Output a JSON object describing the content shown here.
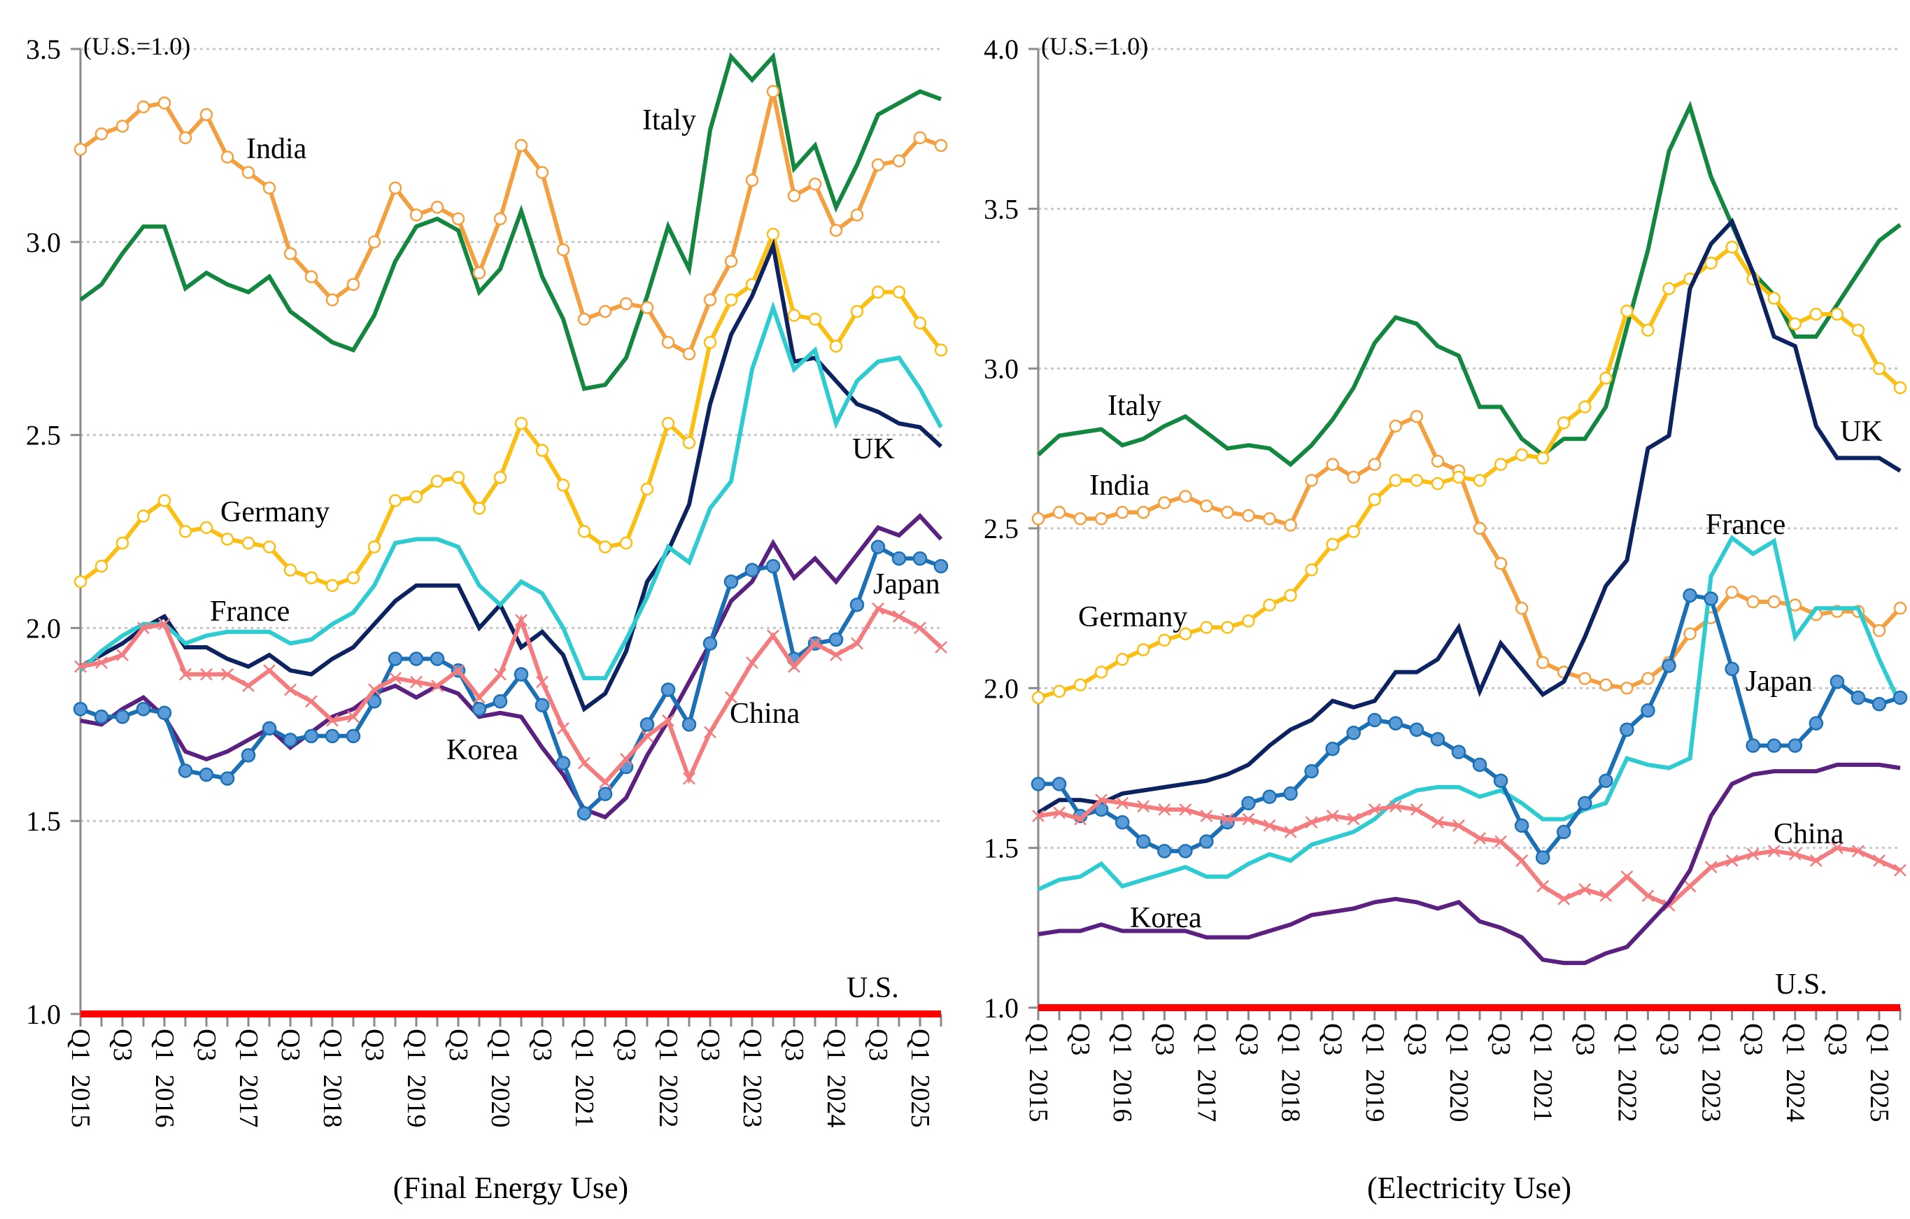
{
  "chart_data": [
    {
      "type": "line",
      "title": "(Final Energy Use)",
      "unit_note": "(U.S.=1.0)",
      "xlabel": "",
      "ylabel": "",
      "ylim": [
        1.0,
        3.5
      ],
      "yticks": [
        "1.0",
        "1.5",
        "2.0",
        "2.5",
        "3.0",
        "3.5"
      ],
      "grid": true,
      "x_tick_labels": [
        "Q1 2015",
        "Q3",
        "Q1 2016",
        "Q3",
        "Q1 2017",
        "Q3",
        "Q1 2018",
        "Q3",
        "Q1 2019",
        "Q3",
        "Q1 2020",
        "Q3",
        "Q1 2021",
        "Q3",
        "Q1 2022",
        "Q3",
        "Q1 2023",
        "Q3",
        "Q1 2024",
        "Q3",
        "Q1 2025"
      ],
      "x": [
        "2015Q1",
        "2015Q2",
        "2015Q3",
        "2015Q4",
        "2016Q1",
        "2016Q2",
        "2016Q3",
        "2016Q4",
        "2017Q1",
        "2017Q2",
        "2017Q3",
        "2017Q4",
        "2018Q1",
        "2018Q2",
        "2018Q3",
        "2018Q4",
        "2019Q1",
        "2019Q2",
        "2019Q3",
        "2019Q4",
        "2020Q1",
        "2020Q2",
        "2020Q3",
        "2020Q4",
        "2021Q1",
        "2021Q2",
        "2021Q3",
        "2021Q4",
        "2022Q1",
        "2022Q2",
        "2022Q3",
        "2022Q4",
        "2023Q1",
        "2023Q2",
        "2023Q3",
        "2023Q4",
        "2024Q1",
        "2024Q2",
        "2024Q3",
        "2024Q4",
        "2025Q1",
        "2025Q2"
      ],
      "series": [
        {
          "name": "Italy",
          "label": "Italy",
          "color": "#13873f",
          "marker": "none",
          "values": [
            2.85,
            2.89,
            2.97,
            3.04,
            3.04,
            2.88,
            2.92,
            2.89,
            2.87,
            2.91,
            2.82,
            2.78,
            2.74,
            2.72,
            2.81,
            2.95,
            3.04,
            3.06,
            3.03,
            2.87,
            2.93,
            3.08,
            2.91,
            2.8,
            2.62,
            2.63,
            2.7,
            2.86,
            3.04,
            2.93,
            3.29,
            3.48,
            3.42,
            3.48,
            3.19,
            3.25,
            3.09,
            3.2,
            3.33,
            3.36,
            3.39,
            3.37
          ]
        },
        {
          "name": "India",
          "label": "India",
          "color": "#f5a040",
          "marker": "open-circle",
          "values": [
            3.24,
            3.28,
            3.3,
            3.35,
            3.36,
            3.27,
            3.33,
            3.22,
            3.18,
            3.14,
            2.97,
            2.91,
            2.85,
            2.89,
            3.0,
            3.14,
            3.07,
            3.09,
            3.06,
            2.92,
            3.06,
            3.25,
            3.18,
            2.98,
            2.8,
            2.82,
            2.84,
            2.83,
            2.74,
            2.71,
            2.85,
            2.95,
            3.16,
            3.39,
            3.12,
            3.15,
            3.03,
            3.07,
            3.2,
            3.21,
            3.27,
            3.25
          ]
        },
        {
          "name": "Germany",
          "label": "Germany",
          "color": "#fbbf13",
          "marker": "open-circle",
          "values": [
            2.12,
            2.16,
            2.22,
            2.29,
            2.33,
            2.25,
            2.26,
            2.23,
            2.22,
            2.21,
            2.15,
            2.13,
            2.11,
            2.13,
            2.21,
            2.33,
            2.34,
            2.38,
            2.39,
            2.31,
            2.39,
            2.53,
            2.46,
            2.37,
            2.25,
            2.21,
            2.22,
            2.36,
            2.53,
            2.48,
            2.74,
            2.85,
            2.89,
            3.02,
            2.81,
            2.8,
            2.73,
            2.82,
            2.87,
            2.87,
            2.79,
            2.72
          ]
        },
        {
          "name": "UK",
          "label": "UK",
          "color": "#0d2260",
          "marker": "none",
          "values": [
            1.9,
            1.93,
            1.96,
            2.0,
            2.03,
            1.95,
            1.95,
            1.92,
            1.9,
            1.93,
            1.89,
            1.88,
            1.92,
            1.95,
            2.01,
            2.07,
            2.11,
            2.11,
            2.11,
            2.0,
            2.06,
            1.95,
            1.99,
            1.93,
            1.79,
            1.83,
            1.94,
            2.12,
            2.2,
            2.32,
            2.58,
            2.76,
            2.86,
            2.99,
            2.69,
            2.7,
            2.64,
            2.58,
            2.56,
            2.53,
            2.52,
            2.47
          ]
        },
        {
          "name": "France",
          "label": "France",
          "color": "#2ecbd1",
          "marker": "none",
          "values": [
            1.89,
            1.94,
            1.98,
            2.01,
            2.01,
            1.96,
            1.98,
            1.99,
            1.99,
            1.99,
            1.96,
            1.97,
            2.01,
            2.04,
            2.11,
            2.22,
            2.23,
            2.23,
            2.21,
            2.11,
            2.06,
            2.12,
            2.09,
            2.0,
            1.87,
            1.87,
            1.97,
            2.08,
            2.21,
            2.17,
            2.31,
            2.38,
            2.67,
            2.83,
            2.67,
            2.72,
            2.53,
            2.64,
            2.69,
            2.7,
            2.62,
            2.52
          ]
        },
        {
          "name": "Korea",
          "label": "Korea",
          "color": "#5b2180",
          "marker": "none",
          "values": [
            1.76,
            1.75,
            1.79,
            1.82,
            1.77,
            1.68,
            1.66,
            1.68,
            1.71,
            1.74,
            1.69,
            1.73,
            1.77,
            1.79,
            1.83,
            1.85,
            1.82,
            1.85,
            1.83,
            1.77,
            1.78,
            1.77,
            1.69,
            1.62,
            1.53,
            1.51,
            1.56,
            1.67,
            1.76,
            1.86,
            1.96,
            2.07,
            2.12,
            2.22,
            2.13,
            2.18,
            2.12,
            2.19,
            2.26,
            2.24,
            2.29,
            2.23
          ]
        },
        {
          "name": "Japan",
          "label": "Japan",
          "color": "#1b70b5",
          "marker": "filled-circle",
          "values": [
            1.79,
            1.77,
            1.77,
            1.79,
            1.78,
            1.63,
            1.62,
            1.61,
            1.67,
            1.74,
            1.71,
            1.72,
            1.72,
            1.72,
            1.81,
            1.92,
            1.92,
            1.92,
            1.89,
            1.79,
            1.81,
            1.88,
            1.8,
            1.65,
            1.52,
            1.57,
            1.64,
            1.75,
            1.84,
            1.75,
            1.96,
            2.12,
            2.15,
            2.16,
            1.92,
            1.96,
            1.97,
            2.06,
            2.21,
            2.18,
            2.18,
            2.16
          ]
        },
        {
          "name": "China",
          "label": "China",
          "color": "#f47c7e",
          "marker": "x",
          "values": [
            1.9,
            1.91,
            1.93,
            2.0,
            2.01,
            1.88,
            1.88,
            1.88,
            1.85,
            1.89,
            1.84,
            1.81,
            1.76,
            1.77,
            1.84,
            1.87,
            1.86,
            1.85,
            1.89,
            1.82,
            1.88,
            2.02,
            1.86,
            1.74,
            1.65,
            1.6,
            1.66,
            1.72,
            1.76,
            1.61,
            1.73,
            1.82,
            1.91,
            1.98,
            1.9,
            1.96,
            1.93,
            1.96,
            2.05,
            2.03,
            2.0,
            1.95
          ]
        },
        {
          "name": "U.S.",
          "label": "U.S.",
          "color": "#ff0000",
          "marker": "none",
          "values": [
            1.0,
            1.0,
            1.0,
            1.0,
            1.0,
            1.0,
            1.0,
            1.0,
            1.0,
            1.0,
            1.0,
            1.0,
            1.0,
            1.0,
            1.0,
            1.0,
            1.0,
            1.0,
            1.0,
            1.0,
            1.0,
            1.0,
            1.0,
            1.0,
            1.0,
            1.0,
            1.0,
            1.0,
            1.0,
            1.0,
            1.0,
            1.0,
            1.0,
            1.0,
            1.0,
            1.0,
            1.0,
            1.0,
            1.0,
            1.0,
            1.0,
            1.0
          ]
        }
      ]
    },
    {
      "type": "line",
      "title": "(Electricity Use)",
      "unit_note": "(U.S.=1.0)",
      "xlabel": "",
      "ylabel": "",
      "ylim": [
        1.0,
        4.0
      ],
      "yticks": [
        "1.0",
        "1.5",
        "2.0",
        "2.5",
        "3.0",
        "3.5",
        "4.0"
      ],
      "grid": true,
      "x_tick_labels": [
        "Q1 2015",
        "Q3",
        "Q1 2016",
        "Q3",
        "Q1 2017",
        "Q3",
        "Q1 2018",
        "Q3",
        "Q1 2019",
        "Q3",
        "Q1 2020",
        "Q3",
        "Q1 2021",
        "Q3",
        "Q1 2022",
        "Q3",
        "Q1 2023",
        "Q3",
        "Q1 2024",
        "Q3",
        "Q1 2025"
      ],
      "x": [
        "2015Q1",
        "2015Q2",
        "2015Q3",
        "2015Q4",
        "2016Q1",
        "2016Q2",
        "2016Q3",
        "2016Q4",
        "2017Q1",
        "2017Q2",
        "2017Q3",
        "2017Q4",
        "2018Q1",
        "2018Q2",
        "2018Q3",
        "2018Q4",
        "2019Q1",
        "2019Q2",
        "2019Q3",
        "2019Q4",
        "2020Q1",
        "2020Q2",
        "2020Q3",
        "2020Q4",
        "2021Q1",
        "2021Q2",
        "2021Q3",
        "2021Q4",
        "2022Q1",
        "2022Q2",
        "2022Q3",
        "2022Q4",
        "2023Q1",
        "2023Q2",
        "2023Q3",
        "2023Q4",
        "2024Q1",
        "2024Q2",
        "2024Q3",
        "2024Q4",
        "2025Q1",
        "2025Q2"
      ],
      "series": [
        {
          "name": "Italy",
          "label": "Italy",
          "color": "#13873f",
          "marker": "none",
          "values": [
            2.73,
            2.79,
            2.8,
            2.81,
            2.76,
            2.78,
            2.82,
            2.85,
            2.8,
            2.75,
            2.76,
            2.75,
            2.7,
            2.76,
            2.84,
            2.94,
            3.08,
            3.16,
            3.14,
            3.07,
            3.04,
            2.88,
            2.88,
            2.78,
            2.73,
            2.78,
            2.78,
            2.88,
            3.13,
            3.37,
            3.68,
            3.82,
            3.6,
            3.45,
            3.3,
            3.23,
            3.1,
            3.1,
            3.2,
            3.3,
            3.4,
            3.45
          ]
        },
        {
          "name": "India",
          "label": "India",
          "color": "#f5a040",
          "marker": "open-circle",
          "values": [
            2.53,
            2.55,
            2.53,
            2.53,
            2.55,
            2.55,
            2.58,
            2.6,
            2.57,
            2.55,
            2.54,
            2.53,
            2.51,
            2.65,
            2.7,
            2.66,
            2.7,
            2.82,
            2.85,
            2.71,
            2.68,
            2.5,
            2.39,
            2.25,
            2.08,
            2.05,
            2.03,
            2.01,
            2.0,
            2.03,
            2.08,
            2.17,
            2.22,
            2.3,
            2.27,
            2.27,
            2.26,
            2.23,
            2.24,
            2.24,
            2.18,
            2.25
          ]
        },
        {
          "name": "Germany",
          "label": "Germany",
          "color": "#fbbf13",
          "marker": "open-circle",
          "values": [
            1.97,
            1.99,
            2.01,
            2.05,
            2.09,
            2.12,
            2.15,
            2.17,
            2.19,
            2.19,
            2.21,
            2.26,
            2.29,
            2.37,
            2.45,
            2.49,
            2.59,
            2.65,
            2.65,
            2.64,
            2.66,
            2.65,
            2.7,
            2.73,
            2.72,
            2.83,
            2.88,
            2.97,
            3.18,
            3.12,
            3.25,
            3.28,
            3.33,
            3.38,
            3.28,
            3.22,
            3.14,
            3.17,
            3.17,
            3.12,
            3.0,
            2.94
          ]
        },
        {
          "name": "UK",
          "label": "UK",
          "color": "#0d2260",
          "marker": "none",
          "values": [
            1.61,
            1.65,
            1.65,
            1.64,
            1.67,
            1.68,
            1.69,
            1.7,
            1.71,
            1.73,
            1.76,
            1.82,
            1.87,
            1.9,
            1.96,
            1.94,
            1.96,
            2.05,
            2.05,
            2.09,
            2.19,
            1.99,
            2.14,
            2.06,
            1.98,
            2.02,
            2.16,
            2.32,
            2.4,
            2.75,
            2.79,
            3.25,
            3.39,
            3.46,
            3.3,
            3.1,
            3.07,
            2.82,
            2.72,
            2.72,
            2.72,
            2.68
          ]
        },
        {
          "name": "France",
          "label": "France",
          "color": "#2ecbd1",
          "marker": "none",
          "values": [
            1.37,
            1.4,
            1.41,
            1.45,
            1.38,
            1.4,
            1.42,
            1.44,
            1.41,
            1.41,
            1.45,
            1.48,
            1.46,
            1.51,
            1.53,
            1.55,
            1.59,
            1.65,
            1.68,
            1.69,
            1.69,
            1.66,
            1.68,
            1.64,
            1.59,
            1.59,
            1.62,
            1.64,
            1.78,
            1.76,
            1.75,
            1.78,
            2.35,
            2.47,
            2.42,
            2.46,
            2.16,
            2.25,
            2.25,
            2.25,
            2.09,
            1.95
          ]
        },
        {
          "name": "Japan",
          "label": "Japan",
          "color": "#1b70b5",
          "marker": "filled-circle",
          "values": [
            1.7,
            1.7,
            1.6,
            1.62,
            1.58,
            1.52,
            1.49,
            1.49,
            1.52,
            1.58,
            1.64,
            1.66,
            1.67,
            1.74,
            1.81,
            1.86,
            1.9,
            1.89,
            1.87,
            1.84,
            1.8,
            1.76,
            1.71,
            1.57,
            1.47,
            1.55,
            1.64,
            1.71,
            1.87,
            1.93,
            2.07,
            2.29,
            2.28,
            2.06,
            1.82,
            1.82,
            1.82,
            1.89,
            2.02,
            1.97,
            1.95,
            1.97
          ]
        },
        {
          "name": "China",
          "label": "China",
          "color": "#f47c7e",
          "marker": "x",
          "values": [
            1.6,
            1.61,
            1.59,
            1.65,
            1.64,
            1.63,
            1.62,
            1.62,
            1.6,
            1.59,
            1.59,
            1.57,
            1.55,
            1.58,
            1.6,
            1.59,
            1.62,
            1.63,
            1.62,
            1.58,
            1.57,
            1.53,
            1.52,
            1.46,
            1.38,
            1.34,
            1.37,
            1.35,
            1.41,
            1.35,
            1.32,
            1.38,
            1.44,
            1.46,
            1.48,
            1.49,
            1.48,
            1.46,
            1.5,
            1.49,
            1.46,
            1.43
          ]
        },
        {
          "name": "Korea",
          "label": "Korea",
          "color": "#5b2180",
          "marker": "none",
          "values": [
            1.23,
            1.24,
            1.24,
            1.26,
            1.24,
            1.24,
            1.24,
            1.24,
            1.22,
            1.22,
            1.22,
            1.24,
            1.26,
            1.29,
            1.3,
            1.31,
            1.33,
            1.34,
            1.33,
            1.31,
            1.33,
            1.27,
            1.25,
            1.22,
            1.15,
            1.14,
            1.14,
            1.17,
            1.19,
            1.26,
            1.33,
            1.43,
            1.6,
            1.7,
            1.73,
            1.74,
            1.74,
            1.74,
            1.76,
            1.76,
            1.76,
            1.75
          ]
        },
        {
          "name": "U.S.",
          "label": "U.S.",
          "color": "#ff0000",
          "marker": "none",
          "values": [
            1.0,
            1.0,
            1.0,
            1.0,
            1.0,
            1.0,
            1.0,
            1.0,
            1.0,
            1.0,
            1.0,
            1.0,
            1.0,
            1.0,
            1.0,
            1.0,
            1.0,
            1.0,
            1.0,
            1.0,
            1.0,
            1.0,
            1.0,
            1.0,
            1.0,
            1.0,
            1.0,
            1.0,
            1.0,
            1.0,
            1.0,
            1.0,
            1.0,
            1.0,
            1.0,
            1.0,
            1.0,
            1.0,
            1.0,
            1.0,
            1.0,
            1.0
          ]
        }
      ]
    }
  ]
}
